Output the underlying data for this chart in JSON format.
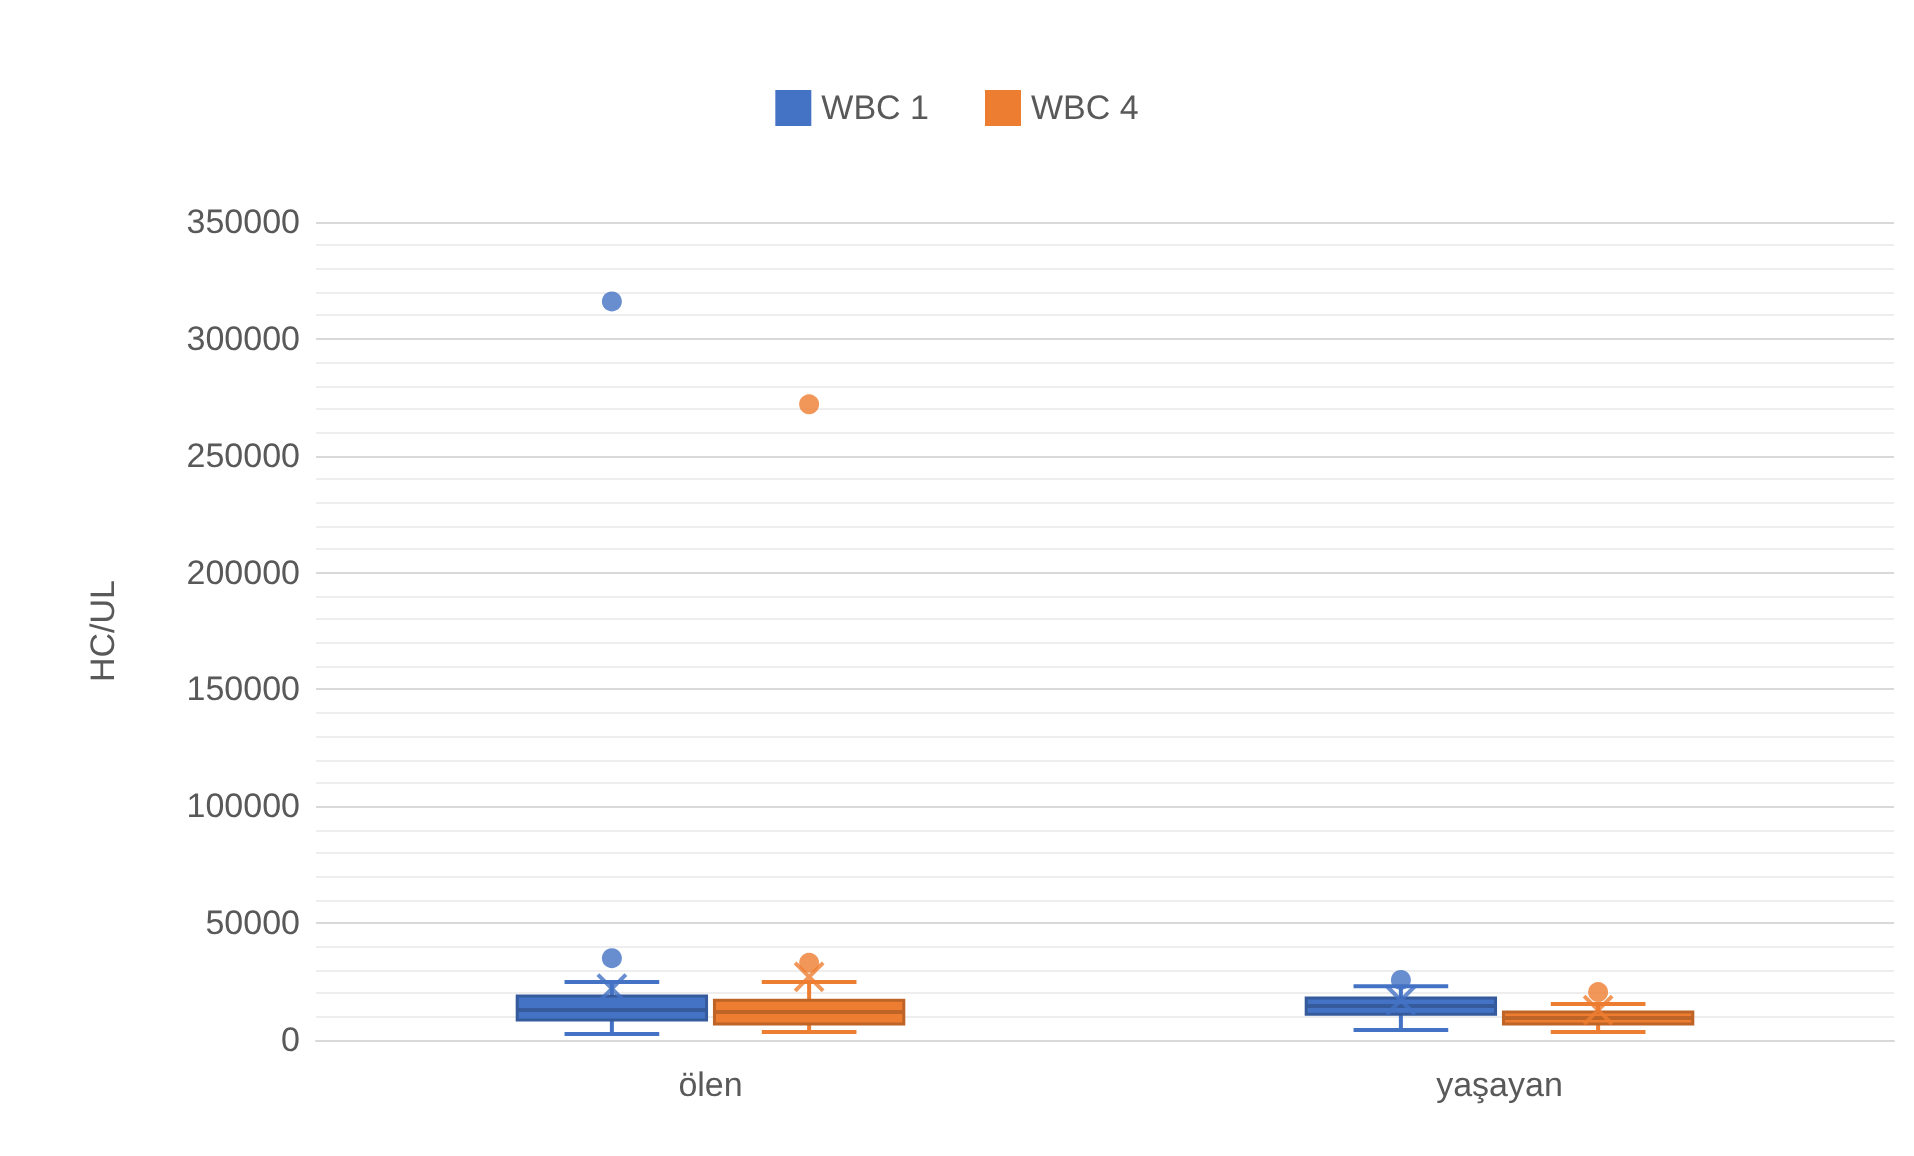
{
  "chart_data": {
    "type": "box",
    "ylabel": "HC/UL",
    "categories": [
      "ölen",
      "yaşayan"
    ],
    "series": [
      {
        "name": "WBC 1",
        "color": "#4472c4",
        "boxes": [
          {
            "low": 2600,
            "q1": 8600,
            "median": 12800,
            "q3": 18800,
            "high": 24800,
            "mean": 22000,
            "outliers": [
              35000,
              316000
            ]
          },
          {
            "low": 4300,
            "q1": 11000,
            "median": 14500,
            "q3": 18000,
            "high": 23000,
            "mean": 17000,
            "outliers": [
              25700
            ]
          }
        ]
      },
      {
        "name": "WBC 4",
        "color": "#ed7d31",
        "boxes": [
          {
            "low": 3400,
            "q1": 6800,
            "median": 12000,
            "q3": 17000,
            "high": 24800,
            "mean": 27000,
            "outliers": [
              33000,
              272000
            ]
          },
          {
            "low": 3400,
            "q1": 6800,
            "median": 9400,
            "q3": 12000,
            "high": 15400,
            "mean": 12800,
            "outliers": [
              20500
            ]
          }
        ]
      }
    ],
    "ylim": [
      0,
      350000
    ],
    "yticks": [
      0,
      50000,
      100000,
      150000,
      200000,
      250000,
      300000,
      350000
    ],
    "grid": "y",
    "legend": "top"
  }
}
